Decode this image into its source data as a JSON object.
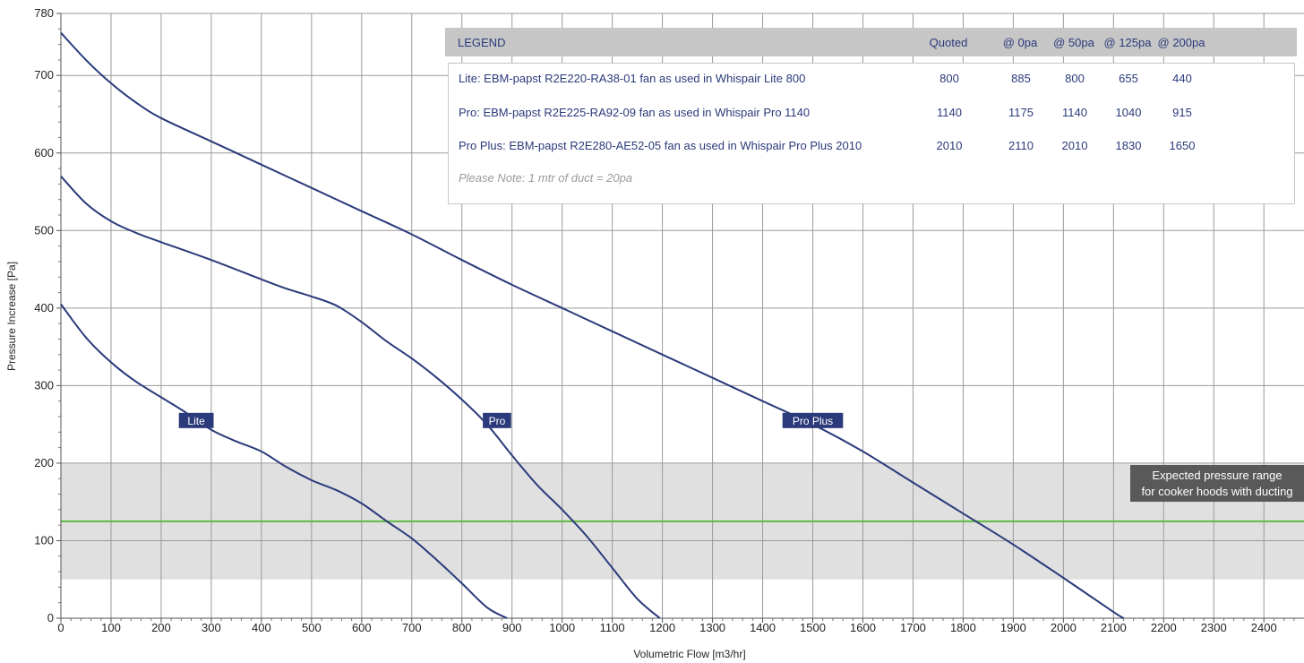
{
  "chart_data": {
    "type": "line",
    "xlabel": "Volumetric Flow [m3/hr]",
    "ylabel": "Pressure Increase [Pa]",
    "xlim": [
      0,
      2480
    ],
    "ylim": [
      0,
      780
    ],
    "x_ticks": [
      "0",
      "100",
      "200",
      "300",
      "400",
      "500",
      "600",
      "700",
      "800",
      "900",
      "1000",
      "1100",
      "1200",
      "1300",
      "1400",
      "1500",
      "1600",
      "1700",
      "1800",
      "1900",
      "2000",
      "2100",
      "2200",
      "2300",
      "2400"
    ],
    "y_ticks": [
      "0",
      "100",
      "200",
      "300",
      "400",
      "500",
      "600",
      "700",
      "780"
    ],
    "grid": true,
    "band": {
      "y_from": 50,
      "y_to": 200,
      "color": "#e0e0e0",
      "label_line1": "Expected pressure range",
      "label_line2": "for cooker hoods with ducting"
    },
    "reference_line": {
      "y": 125,
      "color": "#5dbb3f"
    },
    "series": [
      {
        "name": "Lite",
        "label_at": [
          270,
          255
        ],
        "points": [
          [
            0,
            405
          ],
          [
            50,
            362
          ],
          [
            100,
            330
          ],
          [
            150,
            305
          ],
          [
            200,
            285
          ],
          [
            250,
            265
          ],
          [
            300,
            243
          ],
          [
            350,
            228
          ],
          [
            400,
            215
          ],
          [
            450,
            195
          ],
          [
            500,
            178
          ],
          [
            550,
            165
          ],
          [
            600,
            148
          ],
          [
            650,
            125
          ],
          [
            700,
            103
          ],
          [
            750,
            75
          ],
          [
            800,
            45
          ],
          [
            850,
            14
          ],
          [
            890,
            0
          ]
        ]
      },
      {
        "name": "Pro",
        "label_at": [
          870,
          255
        ],
        "points": [
          [
            0,
            570
          ],
          [
            50,
            535
          ],
          [
            100,
            512
          ],
          [
            150,
            497
          ],
          [
            200,
            485
          ],
          [
            300,
            462
          ],
          [
            400,
            437
          ],
          [
            450,
            425
          ],
          [
            500,
            415
          ],
          [
            550,
            403
          ],
          [
            600,
            382
          ],
          [
            650,
            357
          ],
          [
            700,
            335
          ],
          [
            750,
            310
          ],
          [
            800,
            282
          ],
          [
            850,
            250
          ],
          [
            900,
            210
          ],
          [
            950,
            172
          ],
          [
            1000,
            140
          ],
          [
            1050,
            105
          ],
          [
            1100,
            65
          ],
          [
            1150,
            25
          ],
          [
            1195,
            0
          ]
        ]
      },
      {
        "name": "Pro Plus",
        "label_at": [
          1500,
          255
        ],
        "points": [
          [
            0,
            755
          ],
          [
            50,
            720
          ],
          [
            100,
            690
          ],
          [
            150,
            665
          ],
          [
            200,
            645
          ],
          [
            300,
            615
          ],
          [
            400,
            585
          ],
          [
            500,
            555
          ],
          [
            600,
            525
          ],
          [
            700,
            495
          ],
          [
            800,
            462
          ],
          [
            900,
            430
          ],
          [
            1000,
            400
          ],
          [
            1100,
            370
          ],
          [
            1200,
            340
          ],
          [
            1300,
            310
          ],
          [
            1400,
            280
          ],
          [
            1500,
            250
          ],
          [
            1600,
            215
          ],
          [
            1700,
            175
          ],
          [
            1800,
            135
          ],
          [
            1900,
            95
          ],
          [
            2000,
            52
          ],
          [
            2100,
            8
          ],
          [
            2120,
            0
          ]
        ]
      }
    ],
    "series_color": "#2b3a7a"
  },
  "legend": {
    "title": "LEGEND",
    "columns": [
      "Quoted",
      "@ 0pa",
      "@ 50pa",
      "@ 125pa",
      "@ 200pa"
    ],
    "rows": [
      {
        "label": "Lite: EBM-papst R2E220-RA38-01 fan as used in Whispair Lite 800",
        "values": [
          "800",
          "885",
          "800",
          "655",
          "440"
        ]
      },
      {
        "label": "Pro: EBM-papst R2E225-RA92-09 fan as used in Whispair Pro 1140",
        "values": [
          "1140",
          "1175",
          "1140",
          "1040",
          "915"
        ]
      },
      {
        "label": "Pro Plus: EBM-papst R2E280-AE52-05 fan as used in Whispair Pro Plus 2010",
        "values": [
          "2010",
          "2110",
          "2010",
          "1830",
          "1650"
        ]
      }
    ],
    "note": "Please Note: 1 mtr of duct = 20pa"
  }
}
